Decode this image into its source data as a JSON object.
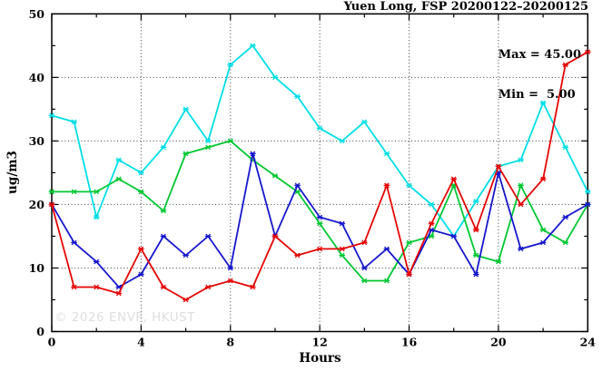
{
  "figure": {
    "title": "Yuen Long, FSP 20200122–20200125",
    "annotation": {
      "max_label": "Max = 45.00",
      "min_label": "Min =  5.00"
    },
    "watermark": "© 2026 ENVF, HKUST"
  },
  "chart_data": {
    "type": "line",
    "title": "Yuen Long, FSP 20200122–20200125",
    "xlabel": "Hours",
    "ylabel": "ug/m3",
    "xlim": [
      0,
      24
    ],
    "ylim": [
      0,
      50
    ],
    "xticks": [
      0,
      4,
      8,
      12,
      16,
      20,
      24
    ],
    "yticks": [
      0,
      10,
      20,
      30,
      40,
      50
    ],
    "x_minor_step": 2,
    "y_minor_step": 5,
    "grid": true,
    "legend_position": "none",
    "marker": "star",
    "stats": {
      "max": 45.0,
      "min": 5.0
    },
    "x": [
      0,
      1,
      2,
      3,
      4,
      5,
      6,
      7,
      8,
      9,
      10,
      11,
      12,
      13,
      14,
      15,
      16,
      17,
      18,
      19,
      20,
      21,
      22,
      23,
      24
    ],
    "series": [
      {
        "name": "cyan-series",
        "color": "#00dfe6",
        "values": [
          34,
          33,
          18,
          27,
          25,
          29,
          35,
          30,
          42,
          45,
          40,
          37,
          32,
          30,
          33,
          28,
          23,
          20,
          15,
          20.5,
          26,
          27,
          36,
          29,
          22
        ]
      },
      {
        "name": "green-series",
        "color": "#00c832",
        "values": [
          22,
          22,
          22,
          24,
          22,
          19,
          28,
          29,
          30,
          27,
          24.5,
          22,
          17,
          12,
          8,
          8,
          14,
          15,
          23,
          12,
          11,
          23,
          16,
          14,
          20
        ]
      },
      {
        "name": "blue-series",
        "color": "#1717cd",
        "values": [
          20,
          14,
          11,
          7,
          9,
          15,
          12,
          15,
          10,
          28,
          15,
          23,
          18,
          17,
          10,
          13,
          9,
          16,
          15,
          9,
          25,
          13,
          14,
          18,
          20
        ]
      },
      {
        "name": "red-series",
        "color": "#e60606",
        "values": [
          20,
          7,
          7,
          6,
          13,
          7,
          5,
          7,
          8,
          7,
          15,
          12,
          13,
          13,
          14,
          23,
          9,
          17,
          24,
          16,
          26,
          20,
          24,
          42,
          44
        ]
      }
    ]
  }
}
